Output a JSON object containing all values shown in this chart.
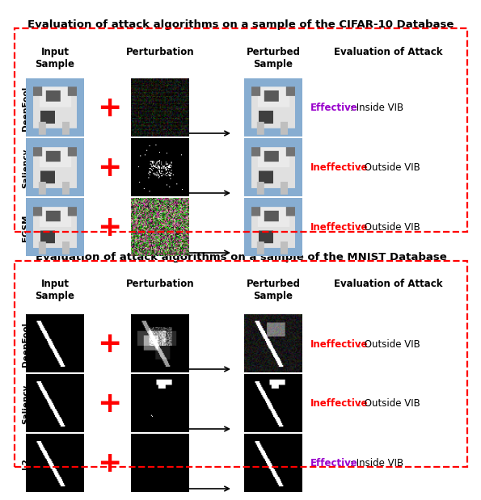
{
  "title_cifar": "Evaluation of attack algorithms on a sample of the CIFAR-10 Database",
  "title_mnist": "Evaluation of attack algorithms on a sample of the MNIST Database",
  "cifar_rows": [
    "DeepFool",
    "Saliency",
    "FGSM"
  ],
  "mnist_rows": [
    "DeepFool",
    "Saliency",
    "L2"
  ],
  "cifar_evaluations": [
    {
      "label": "Effective",
      "label_color": "#9900cc",
      "rest": ": Inside VIB"
    },
    {
      "label": "Ineffective",
      "label_color": "#ff0000",
      "rest": ": Outside VIB"
    },
    {
      "label": "Ineffective",
      "label_color": "#ff0000",
      "rest": ": Outside VIB"
    }
  ],
  "mnist_evaluations": [
    {
      "label": "Ineffective",
      "label_color": "#ff0000",
      "rest": ": Outside VIB"
    },
    {
      "label": "Ineffective",
      "label_color": "#ff0000",
      "rest": ": Outside VIB"
    },
    {
      "label": "Effective",
      "label_color": "#9900cc",
      "rest": ": Inside VIB"
    }
  ],
  "bg_color": "#ffffff",
  "title_fontsize": 9.5,
  "header_fontsize": 8.5,
  "row_label_fontsize": 7.5,
  "eval_fontsize": 8.5,
  "plus_fontsize": 26
}
